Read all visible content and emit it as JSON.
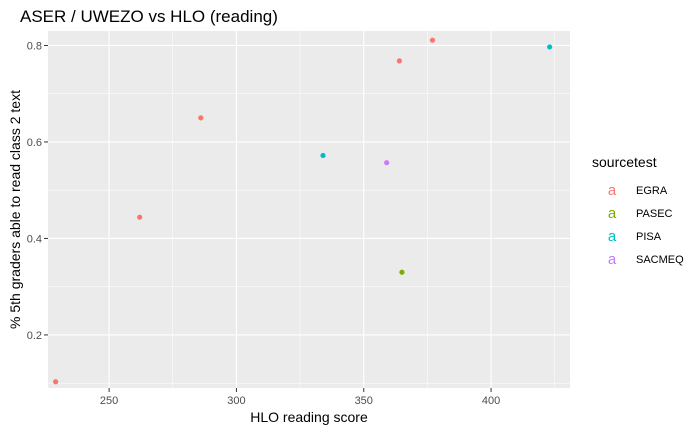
{
  "chart_data": {
    "type": "scatter",
    "title": "ASER / UWEZO vs HLO (reading)",
    "xlabel": "HLO reading score",
    "ylabel": "% 5th graders able to read class 2 text",
    "xlim": [
      226,
      431
    ],
    "ylim": [
      0.09,
      0.83
    ],
    "x_ticks": [
      250,
      300,
      350,
      400
    ],
    "x_tick_labels": [
      "250",
      "300",
      "350",
      "400"
    ],
    "y_ticks": [
      0.2,
      0.4,
      0.6,
      0.8
    ],
    "y_tick_labels": [
      "0.2",
      "0.4",
      "0.6",
      "0.8"
    ],
    "grid": true,
    "legend_position": "right",
    "legend_title": "sourcetest",
    "legend_glyph": "a",
    "series": [
      {
        "name": "EGRA",
        "color": "#F8766D",
        "points": [
          {
            "x": 229,
            "y": 0.103
          },
          {
            "x": 262,
            "y": 0.444
          },
          {
            "x": 286,
            "y": 0.65
          },
          {
            "x": 364,
            "y": 0.768
          },
          {
            "x": 377,
            "y": 0.811
          }
        ]
      },
      {
        "name": "PASEC",
        "color": "#7CAE00",
        "points": [
          {
            "x": 365,
            "y": 0.33
          }
        ]
      },
      {
        "name": "PISA",
        "color": "#00BFC4",
        "points": [
          {
            "x": 334,
            "y": 0.572
          },
          {
            "x": 423,
            "y": 0.797
          }
        ]
      },
      {
        "name": "SACMEQ",
        "color": "#C77CFF",
        "points": [
          {
            "x": 359,
            "y": 0.557
          }
        ]
      }
    ]
  }
}
